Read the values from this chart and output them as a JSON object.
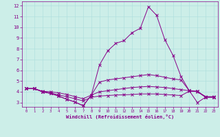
{
  "xlabel": "Windchill (Refroidissement éolien,°C)",
  "bg_color": "#cceee8",
  "line_color": "#880088",
  "grid_color": "#aadddd",
  "x_ticks": [
    0,
    1,
    2,
    3,
    4,
    5,
    6,
    7,
    8,
    9,
    10,
    11,
    12,
    13,
    14,
    15,
    16,
    17,
    18,
    19,
    20,
    21,
    22,
    23
  ],
  "y_ticks": [
    3,
    4,
    5,
    6,
    7,
    8,
    9,
    10,
    11,
    12
  ],
  "ylim": [
    2.6,
    12.4
  ],
  "xlim": [
    -0.5,
    23.5
  ],
  "line1_y": [
    4.3,
    4.3,
    4.0,
    3.85,
    3.6,
    3.3,
    3.05,
    2.7,
    3.7,
    6.5,
    7.8,
    8.5,
    8.75,
    9.5,
    9.9,
    11.9,
    11.1,
    8.85,
    7.4,
    5.4,
    4.1,
    3.0,
    3.5,
    3.5
  ],
  "line2_y": [
    4.3,
    4.3,
    4.0,
    3.85,
    3.6,
    3.3,
    3.05,
    2.7,
    3.7,
    4.9,
    5.1,
    5.2,
    5.3,
    5.4,
    5.5,
    5.6,
    5.5,
    5.35,
    5.2,
    5.1,
    4.1,
    4.0,
    3.5,
    3.5
  ],
  "line3_y": [
    4.3,
    4.3,
    4.05,
    4.0,
    3.9,
    3.75,
    3.55,
    3.35,
    3.7,
    4.0,
    4.1,
    4.2,
    4.3,
    4.4,
    4.45,
    4.5,
    4.45,
    4.4,
    4.3,
    4.2,
    4.1,
    4.05,
    3.55,
    3.55
  ],
  "line4_y": [
    4.3,
    4.3,
    4.0,
    3.9,
    3.7,
    3.55,
    3.35,
    3.15,
    3.5,
    3.6,
    3.65,
    3.7,
    3.72,
    3.75,
    3.8,
    3.8,
    3.8,
    3.75,
    3.7,
    3.65,
    4.05,
    4.05,
    3.5,
    3.5
  ]
}
